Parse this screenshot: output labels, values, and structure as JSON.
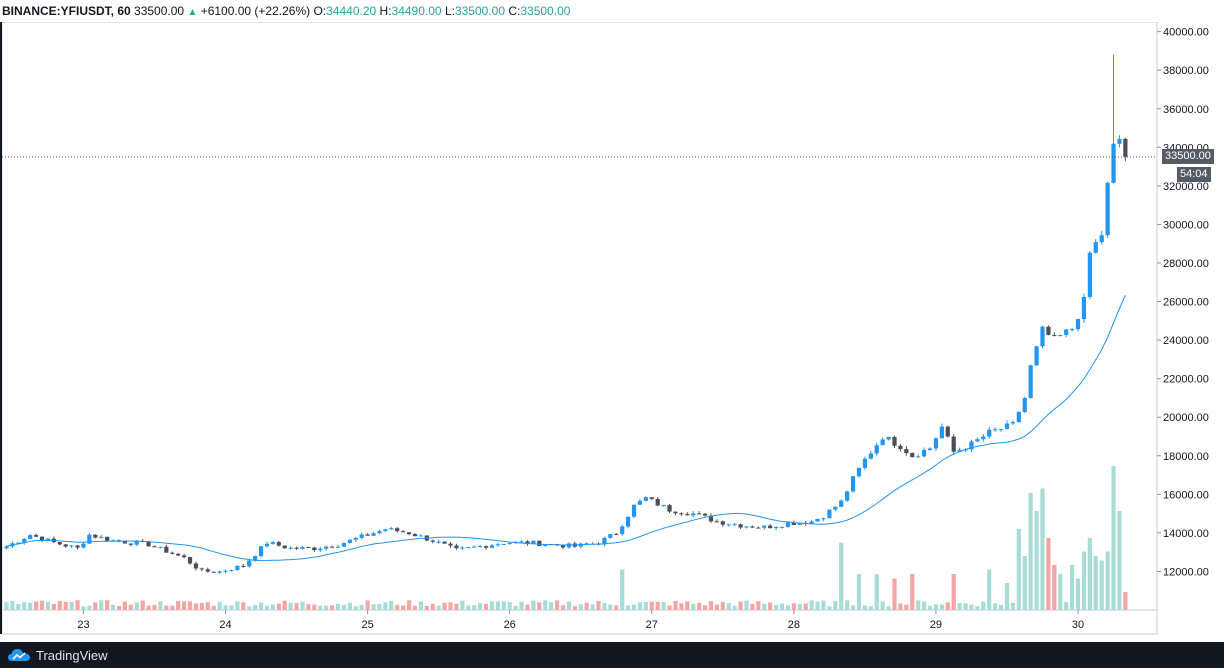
{
  "header": {
    "symbol": "BINANCE:YFIUSDT, 60",
    "last": "33500.00",
    "change": "+6100.00 (+22.26%)",
    "o_label": "O:",
    "o_val": "34440.20",
    "h_label": "H:",
    "h_val": "34490.00",
    "l_label": "L:",
    "l_val": "33500.00",
    "c_label": "C:",
    "c_val": "33500.00"
  },
  "price_label": "33500.00",
  "countdown": "54:04",
  "footer": {
    "brand": "TradingView"
  },
  "colors": {
    "up": "#2196f3",
    "down": "#4a4e59",
    "vol_up": "#a8dcd6",
    "vol_down": "#f4a5a5",
    "ma": "#2196f3"
  },
  "chart_data": {
    "type": "candlestick",
    "symbol": "YFIUSDT",
    "exchange": "BINANCE",
    "interval": "60",
    "ylim": [
      10000,
      40500
    ],
    "y_ticks": [
      12000,
      14000,
      16000,
      18000,
      20000,
      22000,
      24000,
      26000,
      28000,
      30000,
      32000,
      34000,
      36000,
      38000,
      40000
    ],
    "x_ticks": [
      {
        "label": "23",
        "bar": 13
      },
      {
        "label": "24",
        "bar": 37
      },
      {
        "label": "25",
        "bar": 61
      },
      {
        "label": "26",
        "bar": 85
      },
      {
        "label": "27",
        "bar": 109
      },
      {
        "label": "28",
        "bar": 133
      },
      {
        "label": "29",
        "bar": 157
      },
      {
        "label": "30",
        "bar": 181
      }
    ],
    "bar_count": 190,
    "anchors": [
      [
        0,
        13300
      ],
      [
        4,
        13900
      ],
      [
        8,
        13500
      ],
      [
        12,
        13200
      ],
      [
        14,
        13900
      ],
      [
        18,
        13600
      ],
      [
        24,
        13400
      ],
      [
        30,
        12700
      ],
      [
        33,
        12000
      ],
      [
        36,
        12000
      ],
      [
        40,
        12300
      ],
      [
        44,
        13500
      ],
      [
        48,
        13200
      ],
      [
        52,
        13200
      ],
      [
        56,
        13400
      ],
      [
        60,
        13800
      ],
      [
        64,
        14200
      ],
      [
        68,
        14000
      ],
      [
        72,
        13600
      ],
      [
        76,
        13100
      ],
      [
        80,
        13300
      ],
      [
        84,
        13500
      ],
      [
        88,
        13500
      ],
      [
        92,
        13400
      ],
      [
        96,
        13300
      ],
      [
        100,
        13500
      ],
      [
        103,
        14000
      ],
      [
        106,
        15400
      ],
      [
        108,
        15800
      ],
      [
        112,
        15200
      ],
      [
        116,
        15000
      ],
      [
        120,
        14600
      ],
      [
        124,
        14400
      ],
      [
        128,
        14300
      ],
      [
        132,
        14500
      ],
      [
        136,
        14600
      ],
      [
        138,
        14900
      ],
      [
        141,
        15600
      ],
      [
        143,
        16800
      ],
      [
        145,
        17800
      ],
      [
        148,
        19000
      ],
      [
        151,
        18500
      ],
      [
        153,
        18000
      ],
      [
        156,
        18400
      ],
      [
        158,
        19500
      ],
      [
        160,
        18200
      ],
      [
        163,
        18600
      ],
      [
        166,
        19200
      ],
      [
        170,
        19600
      ],
      [
        172,
        21000
      ],
      [
        173,
        22600
      ],
      [
        175,
        24500
      ],
      [
        177,
        24000
      ],
      [
        180,
        24600
      ],
      [
        182,
        26000
      ],
      [
        183,
        28500
      ],
      [
        185,
        29500
      ],
      [
        186,
        32000
      ],
      [
        187,
        34000
      ],
      [
        188,
        34440
      ],
      [
        189,
        33500
      ]
    ],
    "big_wick": {
      "bar": 187,
      "high": 38800
    },
    "last_close": 33500,
    "ma_period": 20,
    "volume": {
      "bars": 190,
      "spikes": [
        {
          "bar": 104,
          "value": 4.5
        },
        {
          "bar": 141,
          "value": 7.5
        },
        {
          "bar": 144,
          "value": 4.0
        },
        {
          "bar": 147,
          "value": 4.0
        },
        {
          "bar": 150,
          "value": 3.5
        },
        {
          "bar": 153,
          "value": 4.0
        },
        {
          "bar": 160,
          "value": 4.0
        },
        {
          "bar": 166,
          "value": 4.5
        },
        {
          "bar": 169,
          "value": 3.0
        },
        {
          "bar": 171,
          "value": 9.0
        },
        {
          "bar": 172,
          "value": 6.0
        },
        {
          "bar": 173,
          "value": 13.0
        },
        {
          "bar": 174,
          "value": 11.0
        },
        {
          "bar": 175,
          "value": 13.5
        },
        {
          "bar": 176,
          "value": 8.0
        },
        {
          "bar": 177,
          "value": 5.0
        },
        {
          "bar": 178,
          "value": 4.0
        },
        {
          "bar": 180,
          "value": 5.0
        },
        {
          "bar": 181,
          "value": 3.5
        },
        {
          "bar": 182,
          "value": 6.5
        },
        {
          "bar": 183,
          "value": 8.0
        },
        {
          "bar": 184,
          "value": 6.0
        },
        {
          "bar": 185,
          "value": 5.5
        },
        {
          "bar": 186,
          "value": 6.5
        },
        {
          "bar": 187,
          "value": 16.0
        },
        {
          "bar": 188,
          "value": 11.0
        },
        {
          "bar": 189,
          "value": 2.0
        }
      ]
    }
  }
}
